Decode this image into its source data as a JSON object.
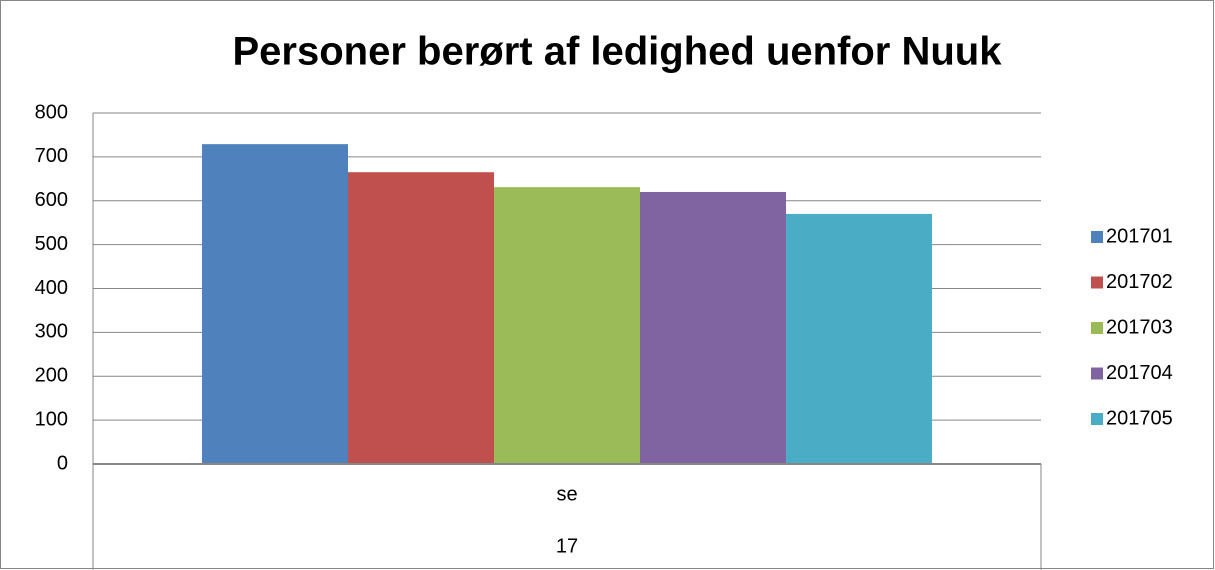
{
  "chart_data": {
    "type": "bar",
    "title": "Personer berørt af ledighed uenfor Nuuk",
    "categories": [
      "se"
    ],
    "category_group": "17",
    "series": [
      {
        "name": "201701",
        "color": "#4f81bd",
        "values": [
          729
        ]
      },
      {
        "name": "201702",
        "color": "#c0504d",
        "values": [
          665
        ]
      },
      {
        "name": "201703",
        "color": "#9bbb59",
        "values": [
          631
        ]
      },
      {
        "name": "201704",
        "color": "#8064a2",
        "values": [
          620
        ]
      },
      {
        "name": "201705",
        "color": "#4bacc6",
        "values": [
          570
        ]
      }
    ],
    "ylim": [
      0,
      800
    ],
    "yticks": [
      0,
      100,
      200,
      300,
      400,
      500,
      600,
      700,
      800
    ],
    "grid": true,
    "legend": "right"
  }
}
